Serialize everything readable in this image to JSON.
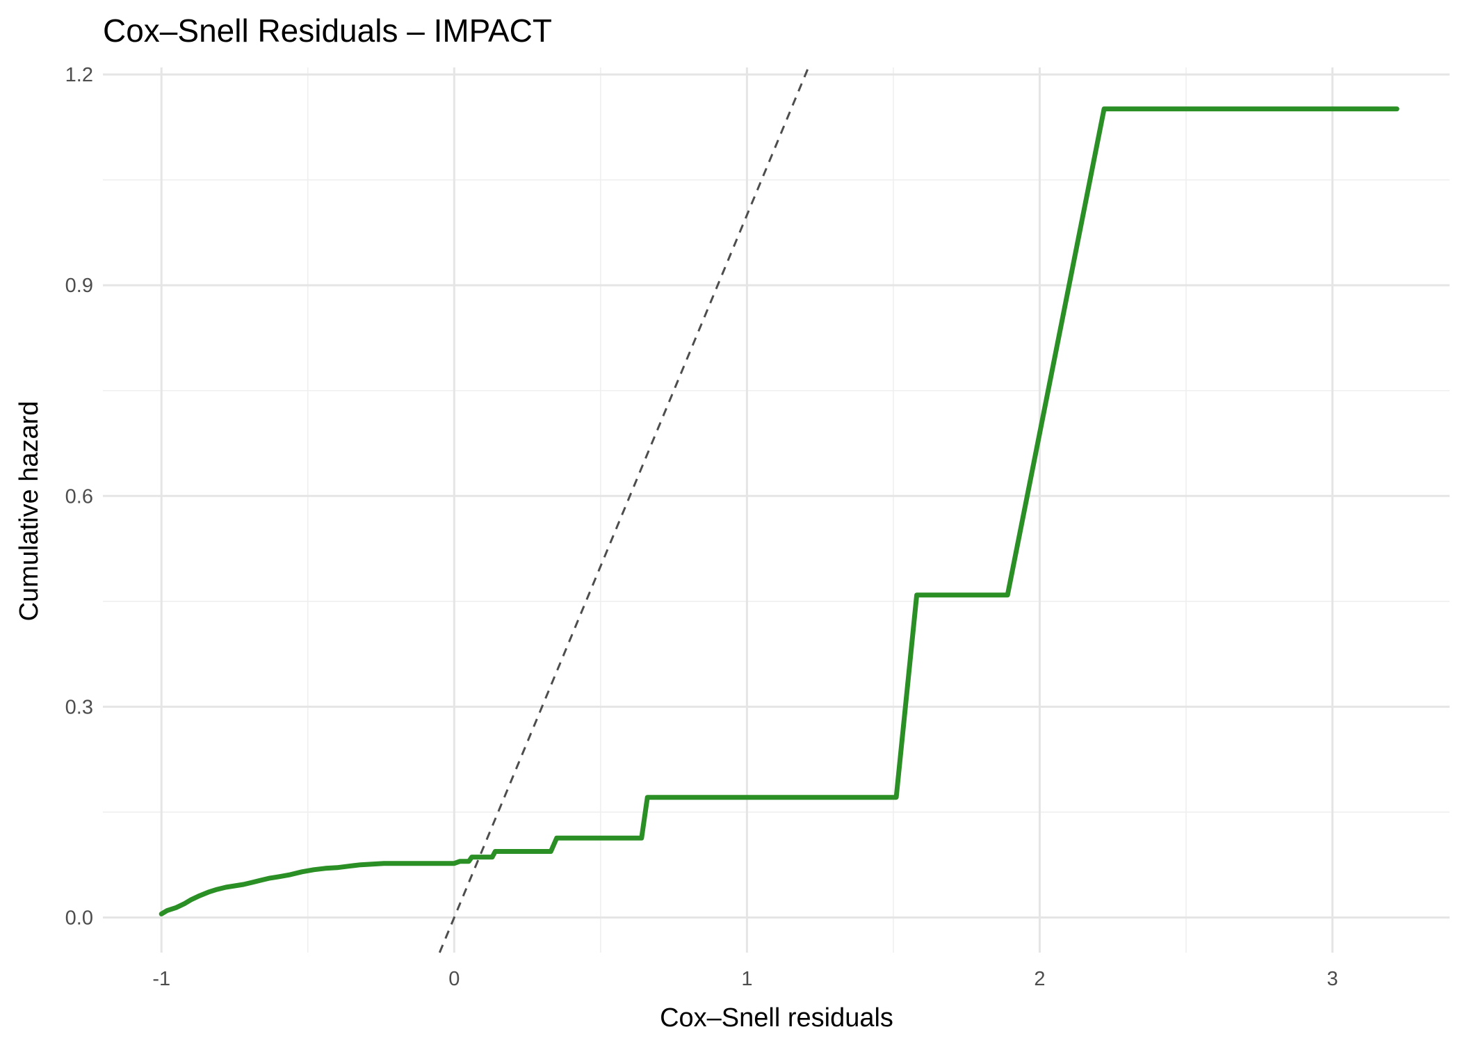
{
  "chart_data": {
    "type": "line",
    "title": "Cox–Snell Residuals – IMPACT",
    "xlabel": "Cox–Snell residuals",
    "ylabel": "Cumulative hazard",
    "xlim": [
      -1.2,
      3.4
    ],
    "ylim": [
      -0.05,
      1.21
    ],
    "x_ticks": [
      -1,
      0,
      1,
      2,
      3
    ],
    "x_tick_labels": [
      "-1",
      "0",
      "1",
      "2",
      "3"
    ],
    "y_ticks": [
      0.0,
      0.3,
      0.6,
      0.9,
      1.2
    ],
    "y_tick_labels": [
      "0.0",
      "0.3",
      "0.6",
      "0.9",
      "1.2"
    ],
    "grid": true,
    "series": [
      {
        "color": "#2a8f24",
        "style": "solid",
        "points": [
          [
            -1.0,
            0.005
          ],
          [
            -0.98,
            0.01
          ],
          [
            -0.95,
            0.014
          ],
          [
            -0.92,
            0.02
          ],
          [
            -0.9,
            0.025
          ],
          [
            -0.87,
            0.031
          ],
          [
            -0.84,
            0.036
          ],
          [
            -0.81,
            0.04
          ],
          [
            -0.78,
            0.043
          ],
          [
            -0.75,
            0.045
          ],
          [
            -0.72,
            0.047
          ],
          [
            -0.69,
            0.05
          ],
          [
            -0.66,
            0.053
          ],
          [
            -0.63,
            0.056
          ],
          [
            -0.6,
            0.058
          ],
          [
            -0.56,
            0.061
          ],
          [
            -0.52,
            0.065
          ],
          [
            -0.48,
            0.068
          ],
          [
            -0.44,
            0.07
          ],
          [
            -0.4,
            0.071
          ],
          [
            -0.36,
            0.073
          ],
          [
            -0.32,
            0.075
          ],
          [
            -0.28,
            0.076
          ],
          [
            -0.24,
            0.077
          ],
          [
            -0.2,
            0.077
          ],
          [
            -0.1,
            0.077
          ],
          [
            0.0,
            0.077
          ],
          [
            0.02,
            0.08
          ],
          [
            0.04,
            0.08
          ],
          [
            0.05,
            0.08
          ],
          [
            0.06,
            0.086
          ],
          [
            0.13,
            0.086
          ],
          [
            0.14,
            0.094
          ],
          [
            0.33,
            0.094
          ],
          [
            0.35,
            0.113
          ],
          [
            0.64,
            0.113
          ],
          [
            0.66,
            0.171
          ],
          [
            1.51,
            0.171
          ],
          [
            1.58,
            0.459
          ],
          [
            1.89,
            0.459
          ],
          [
            2.22,
            1.151
          ],
          [
            3.22,
            1.151
          ]
        ]
      },
      {
        "name": "",
        "color": "#4d4d4d",
        "style": "dashed",
        "points": [
          [
            -0.05,
            -0.05
          ],
          [
            1.21,
            1.21
          ]
        ]
      }
    ]
  }
}
